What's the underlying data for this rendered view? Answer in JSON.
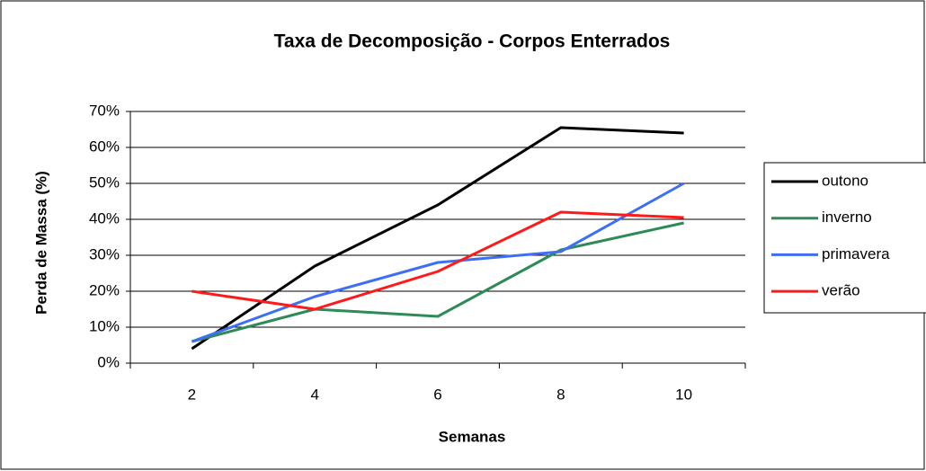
{
  "chart_data": {
    "type": "line",
    "title": "Taxa de Decomposição - Corpos Enterrados",
    "x_label": "Semanas",
    "y_label": "Perda de Massa (%)",
    "categories": [
      "2",
      "4",
      "6",
      "8",
      "10"
    ],
    "ylim": [
      0,
      70
    ],
    "yticks": [
      {
        "value": 0,
        "label": "0%"
      },
      {
        "value": 10,
        "label": "10%"
      },
      {
        "value": 20,
        "label": "20%"
      },
      {
        "value": 30,
        "label": "30%"
      },
      {
        "value": 40,
        "label": "40%"
      },
      {
        "value": 50,
        "label": "50%"
      },
      {
        "value": 60,
        "label": "60%"
      },
      {
        "value": 70,
        "label": "70%"
      }
    ],
    "grid": true,
    "legend": "right",
    "series": [
      {
        "name": "outono",
        "color": "#000000",
        "values": [
          4,
          27,
          44,
          65.5,
          64
        ]
      },
      {
        "name": "inverno",
        "color": "#2e8b57",
        "values": [
          6,
          15,
          13,
          31.5,
          39
        ]
      },
      {
        "name": "primavera",
        "color": "#3d6ef5",
        "values": [
          6,
          18.5,
          28,
          31,
          50
        ]
      },
      {
        "name": "verão",
        "color": "#ff1a1a",
        "values": [
          20,
          15,
          25.5,
          42,
          40.5
        ]
      }
    ]
  }
}
